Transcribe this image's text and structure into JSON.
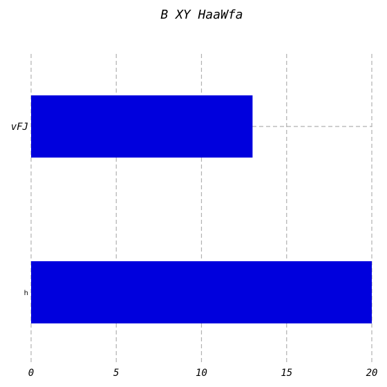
{
  "chart_data": {
    "type": "bar",
    "orientation": "horizontal",
    "title": "B XY HaaWfa",
    "xlabel": "",
    "ylabel": "",
    "categories": [
      "vFJ",
      "h"
    ],
    "values": [
      13,
      20
    ],
    "xlim": [
      0,
      20
    ],
    "x_ticks": [
      "0",
      "5",
      "10",
      "15",
      "20"
    ],
    "grid": {
      "x": true,
      "y": "partial"
    },
    "bar_color": "#0000dd",
    "grid_color": "#b0b0b0"
  }
}
